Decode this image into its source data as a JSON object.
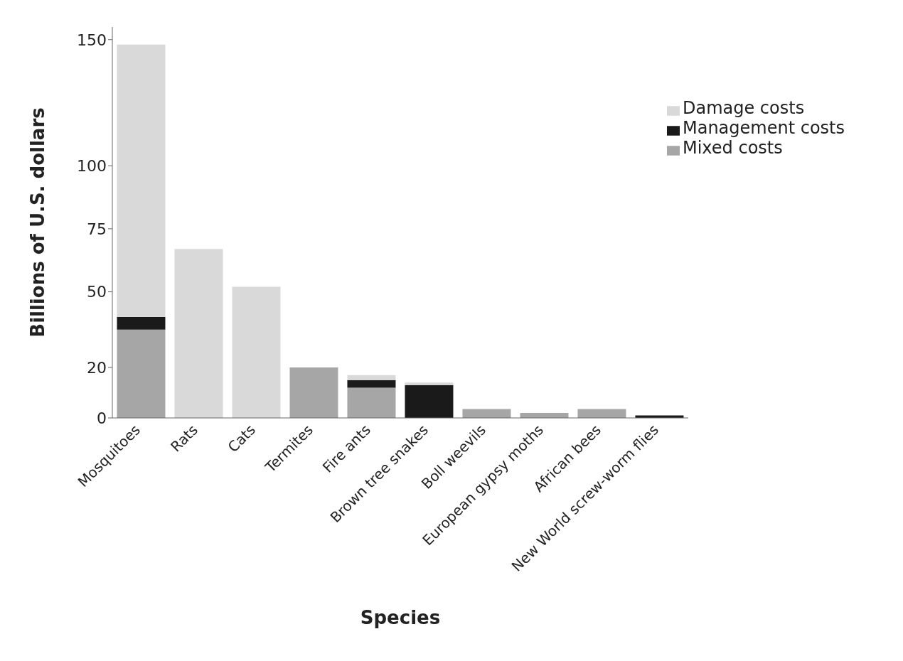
{
  "chart_data": {
    "type": "bar",
    "stacked": true,
    "xlabel": "Species",
    "ylabel": "Billions of U.S. dollars",
    "categories": [
      "Mosquitoes",
      "Rats",
      "Cats",
      "Termites",
      "Fire ants",
      "Brown tree snakes",
      "Boll weevils",
      "European gypsy moths",
      "African bees",
      "New World screw-worm flies"
    ],
    "series": [
      {
        "name": "Mixed costs",
        "color": "#a6a6a6",
        "values": [
          35,
          0,
          0,
          20,
          12,
          0,
          3.5,
          2,
          3.5,
          0
        ]
      },
      {
        "name": "Management costs",
        "color": "#1a1a1a",
        "values": [
          5,
          0,
          0,
          0,
          3,
          13,
          0,
          0,
          0,
          1
        ]
      },
      {
        "name": "Damage costs",
        "color": "#d9d9d9",
        "values": [
          108,
          67,
          52,
          0,
          2,
          1,
          0,
          0,
          0,
          0
        ]
      }
    ],
    "ylim": [
      0,
      155
    ],
    "yticks": [
      0,
      20,
      50,
      75,
      100,
      150
    ],
    "grid": false,
    "legend": "top right"
  }
}
